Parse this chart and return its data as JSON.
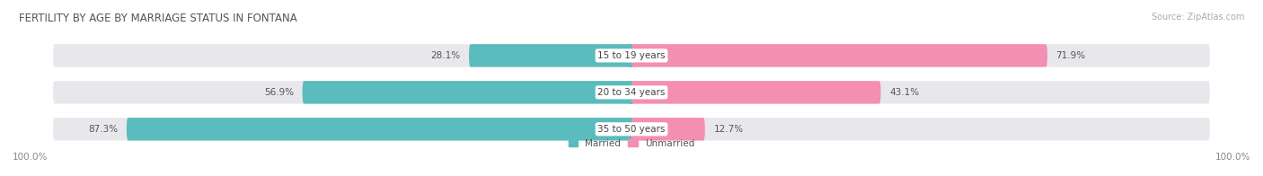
{
  "title": "FERTILITY BY AGE BY MARRIAGE STATUS IN FONTANA",
  "source": "Source: ZipAtlas.com",
  "categories": [
    "15 to 19 years",
    "20 to 34 years",
    "35 to 50 years"
  ],
  "married": [
    28.1,
    56.9,
    87.3
  ],
  "unmarried": [
    71.9,
    43.1,
    12.7
  ],
  "married_color": "#5abcbc",
  "unmarried_color": "#f48fb1",
  "bar_bg_color": "#e8e8ec",
  "bar_height": 0.62,
  "legend_married": "Married",
  "legend_unmarried": "Unmarried",
  "axis_label_left": "100.0%",
  "axis_label_right": "100.0%",
  "title_fontsize": 8.5,
  "source_fontsize": 7,
  "label_fontsize": 7.5,
  "cat_fontsize": 7.5
}
